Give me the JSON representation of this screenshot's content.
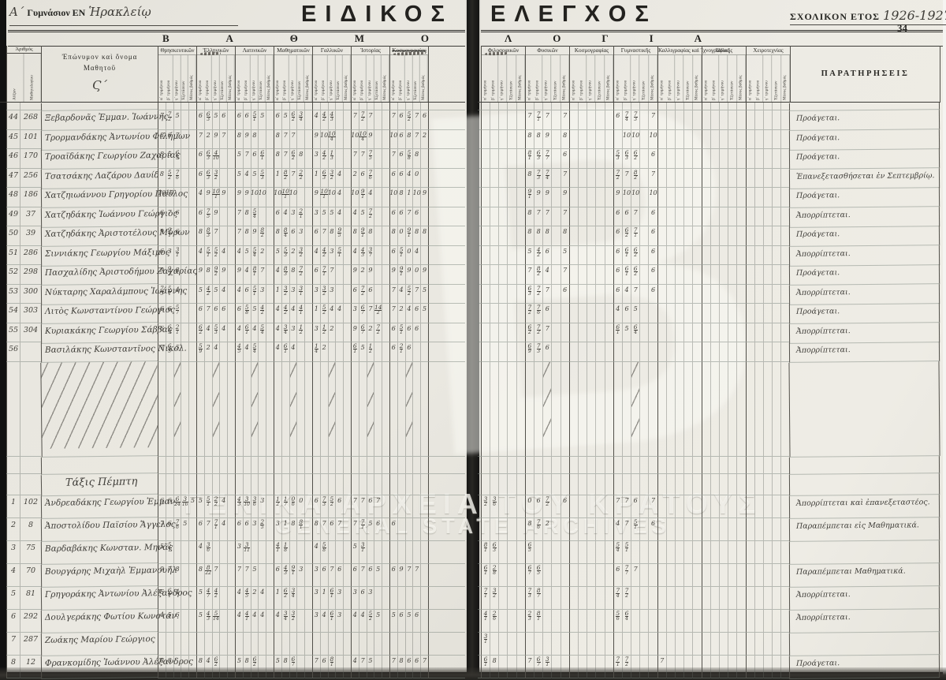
{
  "document": {
    "school_prefix_hw": "Α΄",
    "school_label": "Γυμνάσιον ΕΝ",
    "school_place_hw": "Ἡρακλείῳ",
    "title_left": "ΕΙΔΙΚΟΣ",
    "title_right": "ΕΛΕΓΧΟΣ",
    "year_label": "ΣΧΟΛΙΚΟΝ ΕΤΟΣ",
    "year_hw": "1926-1927",
    "page_number": "34",
    "band_left": "ΒΑΘΜΟ",
    "band_right": "ΛΟΓΙΑ",
    "watermark_line1": "ΓΕΝΙΚΑ ΑΡΧΕΙΑ ΤΟΥ ΚΡΑΤΟΥΣ",
    "watermark_line2": "GENERAL STATE ARCHIVES",
    "emblem_glyph": "Β"
  },
  "table": {
    "number_header": "Ἀριθμός",
    "number_sub": [
      "Αὔξων",
      "Μαθητολογίου"
    ],
    "name_header": "Ἐπώνυμον καὶ ὄνομα\nΜαθητοῦ",
    "class_mark_hw": "Ϛ΄",
    "subcols": [
      "α΄ τριμήνου",
      "β΄ τριμήνου",
      "γ΄ τριμήνου",
      "Ἐξετάσεων",
      "Μέσος βαθμός"
    ],
    "subjects_left": [
      {
        "label": "Θρησκευτικῶν",
        "struck": false,
        "note": false
      },
      {
        "label": "Ἑλληνικῶν",
        "struck": false,
        "note": true
      },
      {
        "label": "Λατινικῶν",
        "struck": false,
        "note": false
      },
      {
        "label": "Μαθηματικῶν",
        "struck": false,
        "note": false
      },
      {
        "label": "Γαλλικῶν",
        "struck": false,
        "note": false
      },
      {
        "label": "Ἱστορίας",
        "struck": false,
        "note": false
      },
      {
        "label": "Κοσμογραφίας",
        "struck": true,
        "note": true
      }
    ],
    "subjects_right": [
      {
        "label": "Φιλοσοφικῶν",
        "struck": false,
        "note": true
      },
      {
        "label": "Φυσικῶν",
        "struck": false,
        "note": false
      },
      {
        "label": "Κοσμογραφίας",
        "struck": false,
        "note": false
      },
      {
        "label": "Γυμναστικῆς",
        "struck": false,
        "note": false
      },
      {
        "label": "Καλλιγραφίας καὶ Ἰχνογραφίας",
        "struck": false,
        "note": false
      },
      {
        "label": "Ὠδικῆς",
        "struck": false,
        "note": false
      },
      {
        "label": "Χειροτεχνίας",
        "struck": false,
        "note": false
      }
    ],
    "remarks_header": "ΠΑΡΑΤΗΡΗΣΕΙΣ",
    "lower_section_title_hw": "Τάξις Πέμπτη"
  },
  "students_upper": [
    {
      "num": "44",
      "reg": "268",
      "name": "Ξεβαρδονᾶς Ἐμμαν. Ἰωάννης",
      "left": "7 7/2 5 . . 6 6/3 5 6 . 6 6 5/1 5 . 6 5 6/2 3/4 . 4 4/2 4/3 . . 7 7/2 7 . . 7 6 5/2 7 6",
      "right": ". . . . . 7 7/1 7 . 7 . . . . . 6 7/4 7/3 . 7 . . . . . . . . . . . . . . .",
      "remark": "Προάγεται."
    },
    {
      "num": "45",
      "reg": "101",
      "name": "Τρορμανδάκης Ἀντωνίου Φιλήμων",
      "left": "8 6 7 . . 7 2 9 7 . 8 9 8 . . 8 7 7 . . 9 10 10/4 . . 10 10/4 9 . . 10 6 8 7 2",
      "right": ". . . . . 8 8 9 . 8 . . . . . . 10 10 . 10 . . . . . . . . . . . . . . .",
      "remark": "Προάγεται."
    },
    {
      "num": "46",
      "reg": "170",
      "name": "Τροαϊδάκης Γεωργίου Ζαχαρίας",
      "left": "8 5 6/5 . . 6 6/3 4/10 . . 5 7 6 6/1 . 8 7 6/2 8 . 3 4/2 1/3 . . 7 7 7/5 . . 7 6 5/8 8 .",
      "right": ". . . . . 8/1 6/3 7/7 . 6 . . . . . 5/3 6/3 6/2 . 6 . . . . . . . . . . . . . . .",
      "remark": "Προάγεται."
    },
    {
      "num": "47",
      "reg": "256",
      "name": "Τσατσάκης Λαζάρου Δαυίδ",
      "left": "8 5/2 7/6 . . 6 6/3 3/2 . . 5 4 5 5/3 . 1 8/2 7 2/2 . 1 6/3 3/2 4 . 2 6 7/6 . . 6 6 4 0 .",
      "right": ". . . . . 8 7/3 7/4 . 7 . . . . . 7/2 7 8/2 . 7 . . . . . . . . . . . . . . .",
      "remark": "Ἐπανεξετασθήσεται ἐν Σεπτεμβρίῳ."
    },
    {
      "num": "48",
      "reg": "186",
      "name": "Χατζηιωάννου Γρηγορίου Παῦλος",
      "left": "10 10 . . . 4 9 10/1 9 . 9 9 10 10 . 10 10/1 10 . . 9 10/1 10 4 . 10 9/1 4 . . 10 8 1 10 9",
      "right": ". . . . . 9/1 9 9 . 9 . . . . . 9 10 10 . 10 . . . . . . . . . . . . . . .",
      "remark": "Προάγεται."
    },
    {
      "num": "49",
      "reg": "37",
      "name": "Χατζηδάκης Ἰωάννου Γεώργιος",
      "left": "6 7 6 . . 6 7/5 9 . . 7 8 5/4 . . 6 4 3 2/1 . 3 5 5 4 . 4 5 7/2 . . 6 6 7 6 .",
      "right": ". . . . . 8 7 7 . 7 . . . . . 6 6 7 . 6 . . . . . . . . . . . . . . .",
      "remark": "Ἀπορρίπτεται."
    },
    {
      "num": "50",
      "reg": "39",
      "name": "Χατζηδάκης Ἀριστοτέλους Μύρων",
      "left": "9 9/1 6 . . 8 8/3 7 . . 7 8 9 8/2 . 8 8/4 6 3 . 6 7 8 9/5 . 8 9/1 8 . . 8 0 9/1 8 8",
      "right": ". . . . . 8 8 8 . 8 . . . . . 6 6/2 7/1 . 6 . . . . . . . . . . . . . . .",
      "remark": "Προάγεται."
    },
    {
      "num": "51",
      "reg": "286",
      "name": "Σιννιάκης Γεωργίου Μάξιμος",
      "left": "6 3 3/1 . . 4 5/1 5/2 4 . 4 5 5/4 2 . 5 5/3 2 3/2 . 4 4/2 3 5/1 . 4 4/3 3/7 . . 6 5/1 0 4 .",
      "right": ". . . . . 5 4/2 6 . 5 . . . . . 6 6/1 6/2 . 6 . . . . . . . . . . . . . . .",
      "remark": "Ἀπορρίπτεται."
    },
    {
      "num": "52",
      "reg": "298",
      "name": "Πασχαλίδης Ἀριστοδήμου Ζαχαρίας",
      "left": "9 9/2 8 . . 9 8 9/2 9 . 9 4 8/1 7 . 4 8/3 8 7/2 . 6 7/1 7 . . 9 2 9 . . 9 9/1 9 0 9",
      "right": ". . . . . 7 8/2 4 . 7 . . . . . 6 6/1 6/2 . 6 . . . . . . . . . . . . . . .",
      "remark": "Προάγεται."
    },
    {
      "num": "53",
      "reg": "300",
      "name": "Νύκταρης Χαραλάμπους Ἰωάννης",
      "left": "7/3 5/1 4 . . 5 4/2 5 4 . 4 6 5/1 3 . 1 3/2 3 3/1 . 3 3/2 3 . . 6 7/2 6 . . 7 4 5/2 7 5",
      "right": ". . . . . 6/3 7/2 7 . 6 . . . . . 6 4 7 . 6 . . . . . . . . . . . . . . .",
      "remark": "Ἀπορρίπτεται."
    },
    {
      "num": "54",
      "reg": "303",
      "name": "Λιτὸς Κωνσταντίνου Γεώργιος",
      "left": "6 6 5/7 . . 6 7 6 6 . 6 5/8 5 4/2 . 4 4/2 4 4/1 . 1 5/2 4 4 . 3 6/7 7 14/2 . 7 2 4 6 5",
      "right": ". . . . . 7/2 7/6 6 . . . . . . . 4 6 5 . . . . . . . . . . . . . . . . .",
      "remark": "Προάγεται."
    },
    {
      "num": "55",
      "reg": "304",
      "name": "Κυριακάκης Γεωργίου Σάββας",
      "left": "6 6/9 2/1 . . 6/2 4 5/3 4 . 4 6/1 4 5/4 . 4 3/4 3 1/2 . 3 1/2 2 . . 9 6/7 2 7/2 . 6 5/1 6 6 .",
      "right": ". . . . . 6/2 7/2 7 . . . . . . . 6/1 5 6/4 . . . . . . . . . . . . . . . . .",
      "remark": "Ἀπορρίπτεται."
    },
    {
      "num": "56",
      "reg": "",
      "name": "Βασιλάκης Κωνσταντῖνος Νικολ.",
      "left": "7 6/5 5 . . 5/9 2 4 . . 4/5 4 5/4 . . 4 6/1 4 . . 1/4 2 . . . 6/1 5 1/2 . . 6 2/1 6 . .",
      "right": ". . . . . 6/9 7/3 6 . . . . . . . . . . . . . . . . . . . . . . . . . . .",
      "remark": "Ἀπορρίπτεται."
    }
  ],
  "students_lower": [
    {
      "num": "1",
      "reg": "102",
      "name": "Ἀνδρεαδάκης Γεωργίου Ἐμμαν.",
      "left": "6 6 6/24 3/16 5 5 5/1 2/2 4 . 4/3 3/10 3/6 3 . 1/2 1/7 0/6 0 . 6 7/3 5/2 6 . 7 7 6 7 . . . . . .",
      "right": "3/2 3/6 . . . 0 6 7/2 . 6 . . . . . 7 7 6 . 7 . . . . . . . . . . . . . . .",
      "remark": "Ἀπορρίπτεται καὶ ἐπανεξεταστέος."
    },
    {
      "num": "2",
      "reg": "8",
      "name": "Ἀποστολίδου Παϊσίου Ἄγγελος",
      "left": "7 6 7/6 5 . 6 7 7/1 4 . 6 6 3 2/5 . 3 1 8 8/1 . 8 7 6 7 . 7 7/1 5 6 . 6 . . . .",
      "right": ". . . . . 8 7/6 2 . . . . . . . 4 7 5/1 . 6 . . . . . . . . . . . . . . .",
      "remark": "Παραπέμπεται εἰς Μαθηματικά."
    },
    {
      "num": "3",
      "reg": "75",
      "name": "Βαρδαβάκης Κωνσταν. Μηνᾶς",
      "left": "5 5/1 . . . 4 3/6 . . . 3 3/11 . . . 4/1 1/8 . . . 4 5/8 . . . 5 3/1 . . . . . . . .",
      "right": "8/1 6/3 . . . 6/5 . . . . . . . . . 5/4 5/1 . . . . . . . . . . . . . . . . . .",
      "remark": ""
    },
    {
      "num": "4",
      "reg": "70",
      "name": "Βουργάρης Μιχαὴλ Ἐμμανουήλ",
      "left": "9 7 8 . . 8 8/22 7 . . 7 7 5 . . 6 4/3 9/1 3 . 3 6 7 6 . 6 7 6 5 . 6 9 7 7 .",
      "right": "6/1 2/8 . . . 6/7 6/5 . . . . . . . . 6 7/7 7 . . . . . . . . . . . . . . . . .",
      "remark": "Παραπέμπεται Μαθηματικά."
    },
    {
      "num": "5",
      "reg": "81",
      "name": "Γρηγοράκης Ἀντωνίου Ἀλέξανδρος",
      "left": "6 6/1 4 . . 5 4/7 4/2 . . 4 4/5 2 4 . 1 6/2 3/4 . . 3 1 6/1 3 . 3 6 3 . . . . . . .",
      "right": "7/1 3/2 . . . 7/3 8/7 . . . . . . . . 7/4 7/2 . . . . . . . . . . . . . . . . . .",
      "remark": "Ἀπορρίπτεται."
    },
    {
      "num": "6",
      "reg": "292",
      "name": "Δουλγεράκης Φωτίου Κωνσταν.",
      "left": "4 5 6 . . 5 4/3 5/14 . . 4 4/1 4 4 . 4 3/4 3/2 . . 3 4 6/1 3 . 4 4 5/2 5 . 5 6 5 6 .",
      "right": "4/1 2/6 . . . 2/3 8/1 . . . . . . . . 5/6 6/4 . . . . . . . . . . . . . . . . . .",
      "remark": "Ἀπορρίπτεται."
    },
    {
      "num": "7",
      "reg": "287",
      "name": "Ζωάκης Μαρίου Γεώργιος",
      "left": ". . . . . . . . . . . . . . . . . . . . . . . . . . . . . . . . . . .",
      "right": "3/1 . . . . . . . . . . . . . . . . . . . . . . . . . . . . . . . . . .",
      "remark": ""
    },
    {
      "num": "8",
      "reg": "12",
      "name": "Φρανκομίδης Ἰωάννου Ἀλέξανδρος",
      "left": "8 8 . . . 8 4 6/2 . . 5 8 6/2 . . 5 8 6/7 . . 7 6 8/1 . . 4 7 5 . . 7 8 6 6 7",
      "right": "6/1 8 . . . 7 6/7 3/1 . . . . . . . 7/1 7/2 . . . 7 . . . . . . . . . . . . . .",
      "remark": "Προάγεται."
    }
  ]
}
